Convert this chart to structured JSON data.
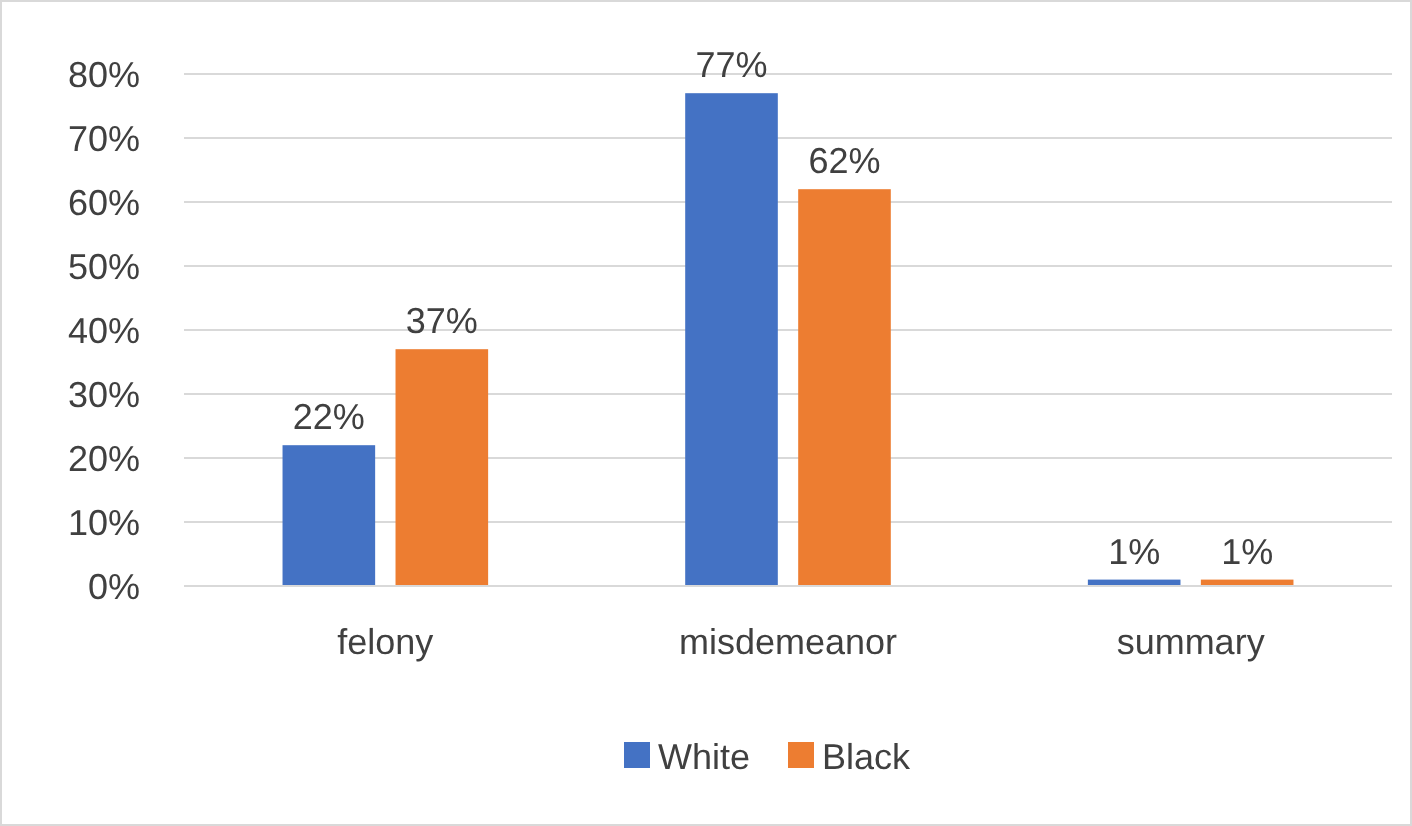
{
  "chart_data": {
    "type": "bar",
    "categories": [
      "felony",
      "misdemeanor",
      "summary"
    ],
    "series": [
      {
        "name": "White",
        "color": "#4472c4",
        "values": [
          22,
          77,
          1
        ],
        "value_labels": [
          "22%",
          "77%",
          "1%"
        ]
      },
      {
        "name": "Black",
        "color": "#ed7d31",
        "values": [
          37,
          62,
          1
        ],
        "value_labels": [
          "37%",
          "62%",
          "1%"
        ]
      }
    ],
    "ylim": [
      0,
      80
    ],
    "yticks": [
      {
        "value": 0,
        "label": "0%"
      },
      {
        "value": 10,
        "label": "10%"
      },
      {
        "value": 20,
        "label": "20%"
      },
      {
        "value": 30,
        "label": "30%"
      },
      {
        "value": 40,
        "label": "40%"
      },
      {
        "value": 50,
        "label": "50%"
      },
      {
        "value": 60,
        "label": "60%"
      },
      {
        "value": 70,
        "label": "70%"
      },
      {
        "value": 80,
        "label": "80%"
      }
    ],
    "grid": "y",
    "legend": "bottom"
  }
}
